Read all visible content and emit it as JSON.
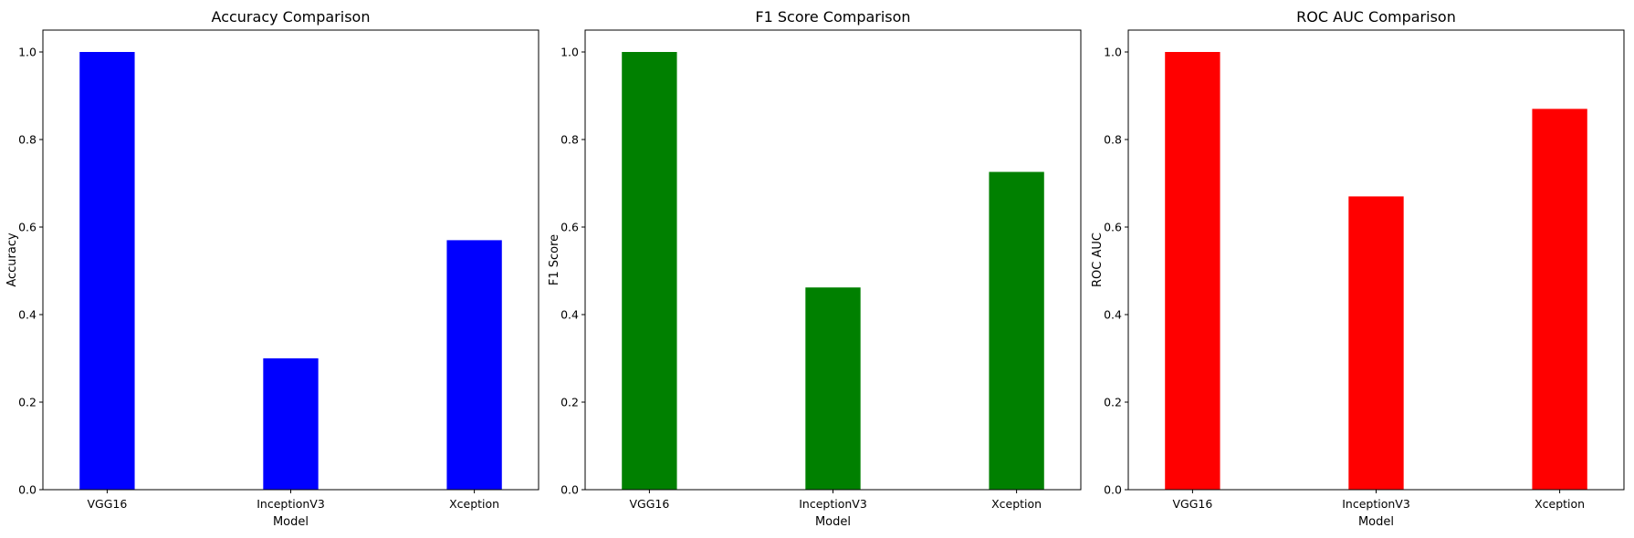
{
  "chart_data": [
    {
      "type": "bar",
      "title": "Accuracy Comparison",
      "xlabel": "Model",
      "ylabel": "Accuracy",
      "categories": [
        "VGG16",
        "InceptionV3",
        "Xception"
      ],
      "values": [
        1.0,
        0.3,
        0.57
      ],
      "color": "#0000ff",
      "ylim": [
        0,
        1.05
      ],
      "yticks": [
        0.0,
        0.2,
        0.4,
        0.6,
        0.8,
        1.0
      ],
      "ytick_labels": [
        "0.0",
        "0.2",
        "0.4",
        "0.6",
        "0.8",
        "1.0"
      ],
      "grid": false
    },
    {
      "type": "bar",
      "title": "F1 Score Comparison",
      "xlabel": "Model",
      "ylabel": "F1 Score",
      "categories": [
        "VGG16",
        "InceptionV3",
        "Xception"
      ],
      "values": [
        1.0,
        0.462,
        0.726
      ],
      "color": "#008000",
      "ylim": [
        0,
        1.05
      ],
      "yticks": [
        0.0,
        0.2,
        0.4,
        0.6,
        0.8,
        1.0
      ],
      "ytick_labels": [
        "0.0",
        "0.2",
        "0.4",
        "0.6",
        "0.8",
        "1.0"
      ],
      "grid": false
    },
    {
      "type": "bar",
      "title": "ROC AUC Comparison",
      "xlabel": "Model",
      "ylabel": "ROC AUC",
      "categories": [
        "VGG16",
        "InceptionV3",
        "Xception"
      ],
      "values": [
        1.0,
        0.67,
        0.87
      ],
      "color": "#ff0000",
      "ylim": [
        0,
        1.05
      ],
      "yticks": [
        0.0,
        0.2,
        0.4,
        0.6,
        0.8,
        1.0
      ],
      "ytick_labels": [
        "0.0",
        "0.2",
        "0.4",
        "0.6",
        "0.8",
        "1.0"
      ],
      "grid": false
    }
  ]
}
